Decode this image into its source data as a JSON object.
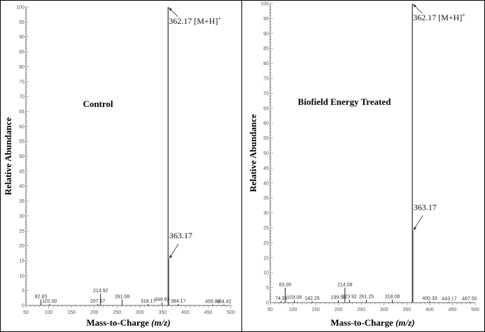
{
  "chart_data": [
    {
      "type": "bar",
      "title": "Control",
      "xlabel": "Mass-to-Charge",
      "xlabel_italic": "(m/z)",
      "ylabel": "Relative Abundance",
      "xlim": [
        50,
        500
      ],
      "ylim": [
        0,
        100
      ],
      "xticks": [
        50,
        100,
        150,
        200,
        250,
        300,
        350,
        400,
        450,
        500
      ],
      "yticks": [
        0,
        5,
        10,
        15,
        20,
        25,
        30,
        35,
        40,
        45,
        50,
        55,
        60,
        65,
        70,
        75,
        80,
        85,
        90,
        95,
        100
      ],
      "grid": false,
      "peaks": [
        {
          "mz": 82.83,
          "intensity": 2.0,
          "label": "82.83"
        },
        {
          "mz": 102.0,
          "intensity": 0.5,
          "label": "102.00"
        },
        {
          "mz": 207.67,
          "intensity": 0.5,
          "label": "207.67"
        },
        {
          "mz": 213.92,
          "intensity": 4.0,
          "label": "213.92"
        },
        {
          "mz": 261.08,
          "intensity": 2.0,
          "label": "261.08"
        },
        {
          "mz": 318.17,
          "intensity": 0.5,
          "label": "318.17"
        },
        {
          "mz": 348.83,
          "intensity": 1.0,
          "label": "348.83"
        },
        {
          "mz": 362.17,
          "intensity": 100,
          "label": ""
        },
        {
          "mz": 363.17,
          "intensity": 15.5,
          "label": ""
        },
        {
          "mz": 384.17,
          "intensity": 0.5,
          "label": "384.17"
        },
        {
          "mz": 459.83,
          "intensity": 0.3,
          "label": "459.83"
        },
        {
          "mz": 484.42,
          "intensity": 0.3,
          "label": "484.42"
        }
      ],
      "annotations": [
        {
          "text": "362.17 [M+H]",
          "sup": "+",
          "mz": 362.17,
          "intensity": 100
        },
        {
          "text": "363.17",
          "sup": "",
          "mz": 363.17,
          "intensity": 15.5
        }
      ]
    },
    {
      "type": "bar",
      "title": "Biofield Energy Treated",
      "xlabel": "Mass-to-Charge",
      "xlabel_italic": "(m/z)",
      "ylabel": "Relative Abundance",
      "xlim": [
        50,
        500
      ],
      "ylim": [
        0,
        100
      ],
      "xticks": [
        50,
        100,
        150,
        200,
        250,
        300,
        350,
        400,
        450,
        500
      ],
      "yticks": [
        0,
        5,
        10,
        15,
        20,
        25,
        30,
        35,
        40,
        45,
        50,
        55,
        60,
        65,
        70,
        75,
        80,
        85,
        90,
        95,
        100
      ],
      "grid": false,
      "peaks": [
        {
          "mz": 74.33,
          "intensity": 0.5,
          "label": "74.33"
        },
        {
          "mz": 83.0,
          "intensity": 5.0,
          "label": "83.00"
        },
        {
          "mz": 103.08,
          "intensity": 0.8,
          "label": "103.08"
        },
        {
          "mz": 142.25,
          "intensity": 0.5,
          "label": "142.25"
        },
        {
          "mz": 199.58,
          "intensity": 0.8,
          "label": "199.58"
        },
        {
          "mz": 214.08,
          "intensity": 5.0,
          "label": "214.08"
        },
        {
          "mz": 223.92,
          "intensity": 1.0,
          "label": "223.92"
        },
        {
          "mz": 261.25,
          "intensity": 1.0,
          "label": "261.25"
        },
        {
          "mz": 318.08,
          "intensity": 1.0,
          "label": "318.08"
        },
        {
          "mz": 362.17,
          "intensity": 100,
          "label": ""
        },
        {
          "mz": 363.17,
          "intensity": 24,
          "label": ""
        },
        {
          "mz": 400.33,
          "intensity": 0.5,
          "label": "400.33"
        },
        {
          "mz": 443.17,
          "intensity": 0.3,
          "label": "443.17"
        },
        {
          "mz": 487.5,
          "intensity": 0.3,
          "label": "487.50"
        }
      ],
      "annotations": [
        {
          "text": "362.17 [M+H]",
          "sup": "+",
          "mz": 362.17,
          "intensity": 100
        },
        {
          "text": "363.17",
          "sup": "",
          "mz": 363.17,
          "intensity": 24
        }
      ]
    }
  ]
}
